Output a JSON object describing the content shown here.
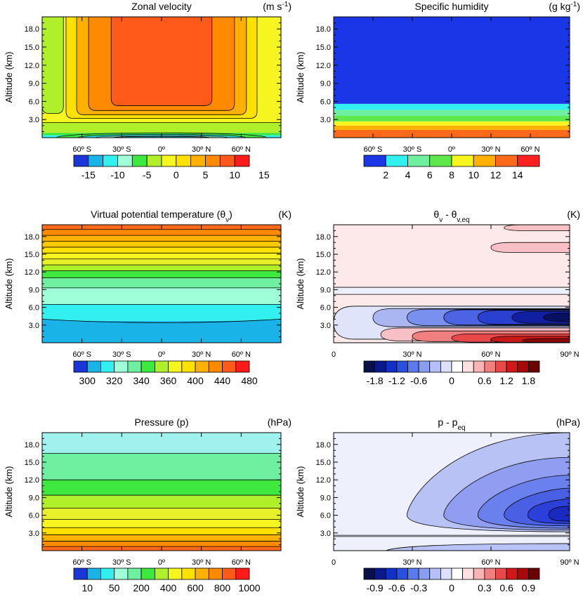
{
  "chart_data": [
    {
      "type": "heatmap",
      "title": "Zonal velocity",
      "units": "(m s",
      "units_exp": "-1",
      "units_close": ")",
      "ylabel": "Altitude (km)",
      "xlim": [
        -90,
        90
      ],
      "ylim": [
        0,
        20
      ],
      "xticks": [
        -60,
        -30,
        0,
        30,
        60
      ],
      "xticklabels": [
        "60º S",
        "30º S",
        "0º",
        "30º N",
        "60º N"
      ],
      "yticks": [
        3,
        6,
        9,
        12,
        15,
        18
      ],
      "yticklabels": [
        "3.0",
        "6.0",
        "9.0",
        "12.0",
        "15.0",
        "18.0"
      ],
      "colorbar": {
        "colors": [
          "#1a36d6",
          "#19b3e8",
          "#33f0f0",
          "#9effd8",
          "#3fe83f",
          "#b0f02a",
          "#f7f51f",
          "#ffe100",
          "#ffb000",
          "#ff8a00",
          "#ff5a1a",
          "#ff1a1a"
        ],
        "labels": [
          "-15",
          "-10",
          "-5",
          "0",
          "5",
          "10",
          "15"
        ],
        "label_positions": [
          1,
          3,
          5,
          7,
          9,
          11,
          13
        ]
      },
      "bands": [
        {
          "y0": 0,
          "y1": 0.4,
          "color": "#33f0f0"
        },
        {
          "y0": 0.4,
          "y1": 0.8,
          "color": "#3fe83f"
        },
        {
          "y0": 0.8,
          "y1": 2.5,
          "color": "#b0f02a"
        },
        {
          "y0": 2.5,
          "y1": 20,
          "color": "#f7f51f"
        }
      ],
      "regions": [
        {
          "x0": -90,
          "x1": -74,
          "y0": 4,
          "y1": 20,
          "color": "#b0f02a"
        },
        {
          "x0": -72,
          "x1": 72,
          "y0": 3.2,
          "y1": 20,
          "color": "#ffe100"
        },
        {
          "x0": -64,
          "x1": 64,
          "y0": 3.8,
          "y1": 20,
          "color": "#ffb000"
        },
        {
          "x0": -55,
          "x1": 55,
          "y0": 4.5,
          "y1": 20,
          "color": "#ff8a00"
        },
        {
          "x0": -38,
          "x1": 38,
          "y0": 5.3,
          "y1": 20,
          "color": "#ff5a1a"
        }
      ],
      "lines_y": [
        2.5
      ],
      "vlines": [
        -74,
        -72,
        -64,
        -55,
        -38,
        38,
        55,
        64,
        72
      ]
    },
    {
      "type": "heatmap",
      "title": "Specific humidity",
      "units": "(g kg",
      "units_exp": "-1",
      "units_close": ")",
      "ylabel": "Altitude (km)",
      "xlim": [
        -90,
        90
      ],
      "ylim": [
        0,
        20
      ],
      "xticks": [
        -60,
        -30,
        0,
        30,
        60
      ],
      "xticklabels": [
        "60º S",
        "30º S",
        "0º",
        "30º N",
        "60º N"
      ],
      "yticks": [
        3,
        6,
        9,
        12,
        15,
        18
      ],
      "yticklabels": [
        "3.0",
        "6.0",
        "9.0",
        "12.0",
        "15.0",
        "18.0"
      ],
      "colorbar": {
        "colors": [
          "#1a36e6",
          "#33f0f0",
          "#6ff0a0",
          "#5fe84a",
          "#f7f51f",
          "#ffb000",
          "#ff6a1a",
          "#ff2020"
        ],
        "labels": [
          "2",
          "4",
          "6",
          "8",
          "10",
          "12",
          "14"
        ],
        "label_positions": [
          1,
          2,
          3,
          4,
          5,
          6,
          7
        ]
      },
      "bands": [
        {
          "y0": 0,
          "y1": 1.3,
          "color": "#ff6a1a"
        },
        {
          "y0": 1.3,
          "y1": 2.0,
          "color": "#ffb000"
        },
        {
          "y0": 2.0,
          "y1": 2.7,
          "color": "#f7f51f"
        },
        {
          "y0": 2.7,
          "y1": 3.6,
          "color": "#5fe84a"
        },
        {
          "y0": 3.6,
          "y1": 4.6,
          "color": "#6ff0a0"
        },
        {
          "y0": 4.6,
          "y1": 5.6,
          "color": "#33f0f0"
        },
        {
          "y0": 5.6,
          "y1": 20,
          "color": "#1a36e6"
        }
      ],
      "lines_y": []
    },
    {
      "type": "heatmap",
      "title": "Virtual potential temperature",
      "title_symbol": "(θ",
      "title_symbol_sub": "v",
      "title_symbol_close": ")",
      "units": "(K)",
      "ylabel": "Altitude (km)",
      "xlim": [
        -90,
        90
      ],
      "ylim": [
        0,
        20
      ],
      "xticks": [
        -60,
        -30,
        0,
        30,
        60
      ],
      "xticklabels": [
        "60º S",
        "30º S",
        "0º",
        "30º N",
        "60º N"
      ],
      "yticks": [
        3,
        6,
        9,
        12,
        15,
        18
      ],
      "yticklabels": [
        "3.0",
        "6.0",
        "9.0",
        "12.0",
        "15.0",
        "18.0"
      ],
      "colorbar": {
        "colors": [
          "#1a36d6",
          "#19b3e8",
          "#33f0f0",
          "#9effd8",
          "#6ff0a0",
          "#3fe83f",
          "#b0f02a",
          "#f7f51f",
          "#ffe100",
          "#ffb000",
          "#ff8a00",
          "#ff5a1a",
          "#ff1a1a"
        ],
        "labels": [
          "300",
          "320",
          "340",
          "360",
          "400",
          "440",
          "480"
        ],
        "label_positions": [
          1,
          3,
          5,
          7,
          9,
          11,
          13
        ]
      },
      "bands": [
        {
          "y0": 0,
          "y1": 3.7,
          "color": "#19b3e8"
        },
        {
          "y0": 3.7,
          "y1": 6.5,
          "color": "#33f0f0"
        },
        {
          "y0": 6.5,
          "y1": 9.3,
          "color": "#9effd8"
        },
        {
          "y0": 9.3,
          "y1": 11.0,
          "color": "#6ff0a0"
        },
        {
          "y0": 11.0,
          "y1": 12.2,
          "color": "#3fe83f"
        },
        {
          "y0": 12.2,
          "y1": 13.2,
          "color": "#b0f02a"
        },
        {
          "y0": 13.2,
          "y1": 14.2,
          "color": "#e8f02a"
        },
        {
          "y0": 14.2,
          "y1": 15.2,
          "color": "#f7f51f"
        },
        {
          "y0": 15.2,
          "y1": 16.2,
          "color": "#ffe100"
        },
        {
          "y0": 16.2,
          "y1": 17.2,
          "color": "#ffc800"
        },
        {
          "y0": 17.2,
          "y1": 18.2,
          "color": "#ffb000"
        },
        {
          "y0": 18.2,
          "y1": 19.2,
          "color": "#ff8a00"
        },
        {
          "y0": 19.2,
          "y1": 20,
          "color": "#ff6a1a"
        }
      ],
      "lines_y": [
        6.5,
        9.3,
        11.0,
        12.2,
        13.2,
        14.2,
        15.2,
        16.2,
        17.2,
        18.2,
        19.2
      ],
      "curve": {
        "color": "#33f0f0",
        "y_edge": 4.0,
        "y_center": 3.5
      }
    },
    {
      "type": "heatmap",
      "title": "θ",
      "title_sub": "v",
      "title_mid": " - θ",
      "title_sub2": "v,eq",
      "units": "(K)",
      "ylabel": "Altitude (km)",
      "xlim": [
        0,
        90
      ],
      "ylim": [
        0,
        20
      ],
      "xticks": [
        0,
        30,
        60,
        90
      ],
      "xticklabels": [
        "0",
        "30º N",
        "60º N",
        "90º N"
      ],
      "yticks": [
        3,
        6,
        9,
        12,
        15,
        18
      ],
      "yticklabels": [
        "3.0",
        "6.0",
        "9.0",
        "12.0",
        "15.0",
        "18.0"
      ],
      "colorbar": {
        "colors": [
          "#08104a",
          "#0a1a8a",
          "#1030c8",
          "#2a50e0",
          "#5a7af0",
          "#8a9ef0",
          "#b4c0f6",
          "#dce2fb",
          "#ffffff",
          "#fde0e0",
          "#f8b4b4",
          "#f08080",
          "#e84848",
          "#d01818",
          "#a80808",
          "#6a0000"
        ],
        "labels": [
          "-1.8",
          "-1.2",
          "-0.6",
          "0",
          "0.6",
          "1.2",
          "1.8"
        ],
        "label_positions": [
          1,
          3,
          5,
          8,
          11,
          13,
          15
        ]
      },
      "bands": [
        {
          "y0": 0,
          "y1": 6.2,
          "color": "#fde9ea"
        },
        {
          "y0": 6.2,
          "y1": 8.2,
          "color": "#fde9ea"
        },
        {
          "y0": 8.2,
          "y1": 9.4,
          "color": "#eef0fb"
        },
        {
          "y0": 9.4,
          "y1": 20,
          "color": "#fde9ea"
        }
      ],
      "lines_y": [
        8.2,
        9.4
      ],
      "lobes": [
        {
          "x_tip": 0,
          "y_lo": 0.6,
          "y_hi": 6.2,
          "color": "#e0e4fa"
        },
        {
          "x_tip": 18,
          "y_lo": 0.3,
          "y_hi": 2.5,
          "color": "#f8c0c4"
        },
        {
          "x_tip": 30,
          "y_lo": 0.2,
          "y_hi": 2.0,
          "color": "#f08080"
        },
        {
          "x_tip": 45,
          "y_lo": 0.1,
          "y_hi": 1.5,
          "color": "#e84848"
        },
        {
          "x_tip": 60,
          "y_lo": 0.05,
          "y_hi": 1.1,
          "color": "#c81818"
        },
        {
          "x_tip": 72,
          "y_lo": 0.05,
          "y_hi": 0.7,
          "color": "#8a0808"
        },
        {
          "x_tip": 15,
          "y_lo": 2.7,
          "y_hi": 5.8,
          "color": "#aab6f2"
        },
        {
          "x_tip": 28,
          "y_lo": 2.9,
          "y_hi": 5.7,
          "color": "#7a90ee"
        },
        {
          "x_tip": 42,
          "y_lo": 3.0,
          "y_hi": 5.6,
          "color": "#4a64e4"
        },
        {
          "x_tip": 55,
          "y_lo": 3.1,
          "y_hi": 5.5,
          "color": "#2a40d0"
        },
        {
          "x_tip": 68,
          "y_lo": 3.3,
          "y_hi": 5.3,
          "color": "#1020a0"
        },
        {
          "x_tip": 80,
          "y_lo": 3.6,
          "y_hi": 5.0,
          "color": "#081060"
        },
        {
          "x_tip": 60,
          "y_lo": 15.3,
          "y_hi": 17.0,
          "color": "#f8c0c4"
        },
        {
          "x_tip": 65,
          "y_lo": 19.0,
          "y_hi": 20.0,
          "color": "#f8c0c4"
        }
      ]
    },
    {
      "type": "heatmap",
      "title": "Pressure (p)",
      "units": "(hPa)",
      "ylabel": "Altitude (km)",
      "xlim": [
        -90,
        90
      ],
      "ylim": [
        0,
        20
      ],
      "xticks": [
        -60,
        -30,
        0,
        30,
        60
      ],
      "xticklabels": [
        "60º S",
        "30º S",
        "0º",
        "30º N",
        "60º N"
      ],
      "yticks": [
        3,
        6,
        9,
        12,
        15,
        18
      ],
      "yticklabels": [
        "3.0",
        "6.0",
        "9.0",
        "12.0",
        "15.0",
        "18.0"
      ],
      "colorbar": {
        "colors": [
          "#1a36d6",
          "#19b3e8",
          "#33f0f0",
          "#9effd8",
          "#6ff0a0",
          "#3fe83f",
          "#b0f02a",
          "#f7f51f",
          "#ffe100",
          "#ffb000",
          "#ff8a00",
          "#ff5a1a",
          "#ff1a1a"
        ],
        "labels": [
          "10",
          "50",
          "200",
          "400",
          "600",
          "800",
          "1000"
        ],
        "label_positions": [
          1,
          3,
          5,
          7,
          9,
          11,
          13
        ]
      },
      "bands": [
        {
          "y0": 0,
          "y1": 0.7,
          "color": "#ff6a1a"
        },
        {
          "y0": 0.7,
          "y1": 1.6,
          "color": "#ff8a00"
        },
        {
          "y0": 1.6,
          "y1": 2.7,
          "color": "#ffb000"
        },
        {
          "y0": 2.7,
          "y1": 3.9,
          "color": "#ffe100"
        },
        {
          "y0": 3.9,
          "y1": 5.3,
          "color": "#f7f51f"
        },
        {
          "y0": 5.3,
          "y1": 7.2,
          "color": "#e8f02a"
        },
        {
          "y0": 7.2,
          "y1": 9.4,
          "color": "#b0f02a"
        },
        {
          "y0": 9.4,
          "y1": 12.0,
          "color": "#3fe83f"
        },
        {
          "y0": 12.0,
          "y1": 16.5,
          "color": "#6ff0a0"
        },
        {
          "y0": 16.5,
          "y1": 20,
          "color": "#9ff2ee"
        }
      ],
      "lines_y": [
        0.7,
        1.6,
        2.7,
        3.9,
        5.3,
        7.2,
        9.4,
        12.0,
        16.5
      ]
    },
    {
      "type": "heatmap",
      "title": "p - p",
      "title_sub": "eq",
      "units": "(hPa)",
      "ylabel": "Altitude (km)",
      "xlim": [
        0,
        90
      ],
      "ylim": [
        0,
        20
      ],
      "xticks": [
        0,
        30,
        60,
        90
      ],
      "xticklabels": [
        "0",
        "30º N",
        "60º N",
        "90º N"
      ],
      "yticks": [
        3,
        6,
        9,
        12,
        15,
        18
      ],
      "yticklabels": [
        "3.0",
        "6.0",
        "9.0",
        "12.0",
        "15.0",
        "18.0"
      ],
      "colorbar": {
        "colors": [
          "#08104a",
          "#0a1a8a",
          "#1030c8",
          "#2a50e0",
          "#5a7af0",
          "#8a9ef0",
          "#b4c0f6",
          "#dce2fb",
          "#ffffff",
          "#fde0e0",
          "#f8b4b4",
          "#f08080",
          "#e84848",
          "#d01818",
          "#a80808",
          "#6a0000"
        ],
        "labels": [
          "-0.9",
          "-0.6",
          "-0.3",
          "0",
          "0.3",
          "0.6",
          "0.9"
        ],
        "label_positions": [
          1,
          3,
          5,
          8,
          11,
          13,
          15
        ]
      },
      "bands": [
        {
          "y0": 0,
          "y1": 2.6,
          "color": "#eef0fb"
        },
        {
          "y0": 2.6,
          "y1": 20,
          "color": "#eef0fb"
        }
      ],
      "lines_y": [
        2.6,
        2.4
      ],
      "fans": [
        {
          "x_tip": 28,
          "y_mid": 6.0,
          "y_lo": 3.2,
          "y_hi": 20,
          "color": "#b8c2f4"
        },
        {
          "x_tip": 42,
          "y_mid": 6.0,
          "y_lo": 3.5,
          "y_hi": 15.8,
          "color": "#8f9ef0"
        },
        {
          "x_tip": 55,
          "y_mid": 6.0,
          "y_lo": 3.8,
          "y_hi": 12.8,
          "color": "#6a80ec"
        },
        {
          "x_tip": 65,
          "y_mid": 6.0,
          "y_lo": 4.2,
          "y_hi": 10.6,
          "color": "#4a60e4"
        },
        {
          "x_tip": 74,
          "y_mid": 6.0,
          "y_lo": 4.6,
          "y_hi": 8.8,
          "color": "#2a40d8"
        },
        {
          "x_tip": 82,
          "y_mid": 6.0,
          "y_lo": 5.1,
          "y_hi": 7.2,
          "color": "#1a2ac0"
        }
      ],
      "bottom_lobe": {
        "x_tip": 20,
        "y_lo": 0.0,
        "y_hi": 1.2,
        "color": "#b8c2f4"
      }
    }
  ]
}
